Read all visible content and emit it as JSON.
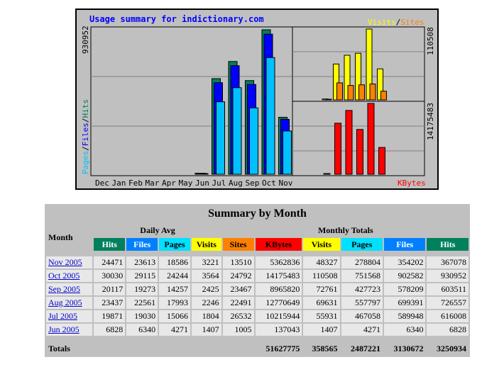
{
  "chart": {
    "title": "Usage summary for indictionary.com",
    "months": [
      "Dec",
      "Jan",
      "Feb",
      "Mar",
      "Apr",
      "May",
      "Jun",
      "Jul",
      "Aug",
      "Sep",
      "Oct",
      "Nov"
    ],
    "left_max_label": "930952",
    "left_axis_legend": {
      "pages": "Pages",
      "files": "Files",
      "hits": "Hits",
      "sep": "/"
    },
    "right_top_legend": {
      "visits": "Visits",
      "sites": "Sites",
      "sep": "/"
    },
    "right_top_max_label": "110508",
    "right_bottom_max_label": "14175483",
    "right_bottom_legend": "KBytes",
    "left_max": 930952,
    "visits_max": 110508,
    "kbytes_max": 14175483,
    "chart_data": {
      "type": "bar",
      "categories": [
        "Dec",
        "Jan",
        "Feb",
        "Mar",
        "Apr",
        "May",
        "Jun",
        "Jul",
        "Aug",
        "Sep",
        "Oct",
        "Nov"
      ],
      "series": [
        {
          "name": "Hits",
          "values": [
            0,
            0,
            0,
            0,
            0,
            0,
            6828,
            616008,
            726557,
            603511,
            930952,
            367078
          ]
        },
        {
          "name": "Files",
          "values": [
            0,
            0,
            0,
            0,
            0,
            0,
            6340,
            589948,
            699391,
            578209,
            902582,
            354202
          ]
        },
        {
          "name": "Pages",
          "values": [
            0,
            0,
            0,
            0,
            0,
            0,
            4271,
            467058,
            557797,
            427723,
            751568,
            278804
          ]
        },
        {
          "name": "Visits",
          "values": [
            0,
            0,
            0,
            0,
            0,
            0,
            1407,
            55931,
            69631,
            72761,
            110508,
            48327
          ]
        },
        {
          "name": "Sites",
          "values": [
            0,
            0,
            0,
            0,
            0,
            0,
            1005,
            26532,
            22491,
            23467,
            24792,
            13510
          ]
        },
        {
          "name": "KBytes",
          "values": [
            0,
            0,
            0,
            0,
            0,
            0,
            137043,
            10215944,
            12770649,
            8965820,
            14175483,
            5362836
          ]
        }
      ]
    }
  },
  "colors": {
    "hits": "#00805c",
    "files": "#0000ff",
    "pages": "#00c0ff",
    "visits": "#ffff00",
    "sites": "#ff8000",
    "kbytes": "#ff0000",
    "panel": "#c0c0c0",
    "title_text": "#0000ff"
  },
  "table": {
    "title": "Summary by Month",
    "month_header": "Month",
    "daily_avg_header": "Daily Avg",
    "monthly_totals_header": "Monthly Totals",
    "daily_cols": [
      "Hits",
      "Files",
      "Pages",
      "Visits"
    ],
    "monthly_cols": [
      "Sites",
      "KBytes",
      "Visits",
      "Pages",
      "Files",
      "Hits"
    ],
    "rows": [
      {
        "month": "Nov 2005",
        "hits": "24471",
        "files": "23613",
        "pages": "18586",
        "visits": "3221",
        "sites": "13510",
        "kbytes": "5362836",
        "m_visits": "48327",
        "m_pages": "278804",
        "m_files": "354202",
        "m_hits": "367078"
      },
      {
        "month": "Oct 2005",
        "hits": "30030",
        "files": "29115",
        "pages": "24244",
        "visits": "3564",
        "sites": "24792",
        "kbytes": "14175483",
        "m_visits": "110508",
        "m_pages": "751568",
        "m_files": "902582",
        "m_hits": "930952"
      },
      {
        "month": "Sep 2005",
        "hits": "20117",
        "files": "19273",
        "pages": "14257",
        "visits": "2425",
        "sites": "23467",
        "kbytes": "8965820",
        "m_visits": "72761",
        "m_pages": "427723",
        "m_files": "578209",
        "m_hits": "603511"
      },
      {
        "month": "Aug 2005",
        "hits": "23437",
        "files": "22561",
        "pages": "17993",
        "visits": "2246",
        "sites": "22491",
        "kbytes": "12770649",
        "m_visits": "69631",
        "m_pages": "557797",
        "m_files": "699391",
        "m_hits": "726557"
      },
      {
        "month": "Jul 2005",
        "hits": "19871",
        "files": "19030",
        "pages": "15066",
        "visits": "1804",
        "sites": "26532",
        "kbytes": "10215944",
        "m_visits": "55931",
        "m_pages": "467058",
        "m_files": "589948",
        "m_hits": "616008"
      },
      {
        "month": "Jun 2005",
        "hits": "6828",
        "files": "6340",
        "pages": "4271",
        "visits": "1407",
        "sites": "1005",
        "kbytes": "137043",
        "m_visits": "1407",
        "m_pages": "4271",
        "m_files": "6340",
        "m_hits": "6828"
      }
    ],
    "totals": {
      "label": "Totals",
      "kbytes": "51627775",
      "visits": "358565",
      "pages": "2487221",
      "files": "3130672",
      "hits": "3250934"
    }
  }
}
